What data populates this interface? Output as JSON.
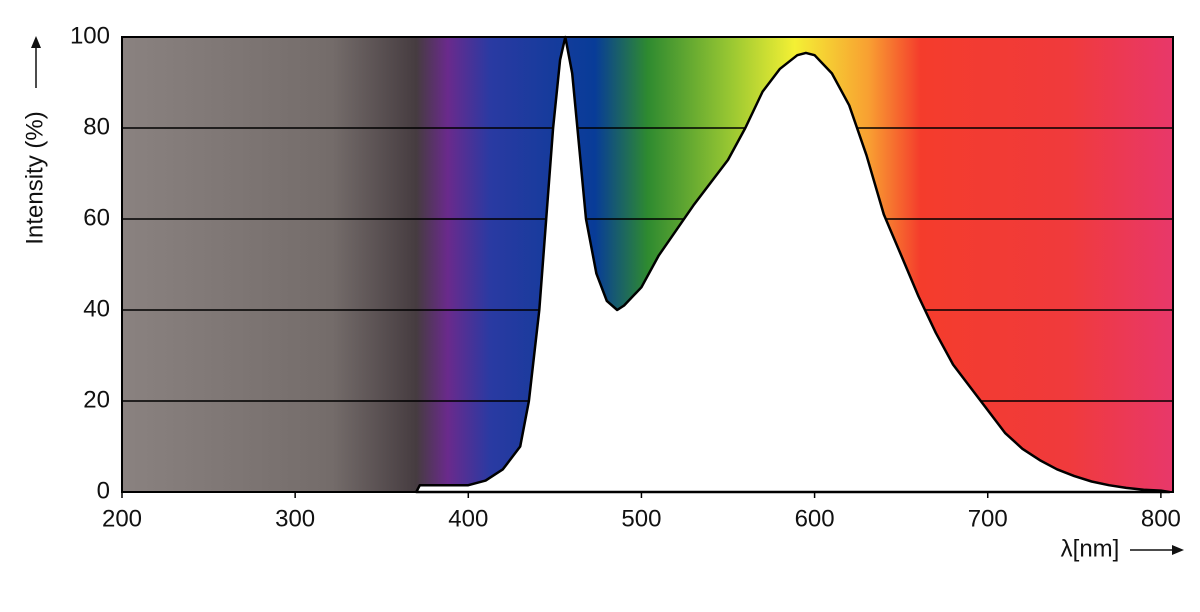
{
  "chart_data": {
    "type": "area",
    "x_label": "λ[nm]",
    "y_label": "Intensity (%)",
    "x": [
      370,
      372,
      400,
      410,
      420,
      430,
      435,
      441,
      445,
      449,
      453,
      456,
      460,
      463,
      468,
      474,
      480,
      486,
      490,
      500,
      510,
      520,
      530,
      540,
      550,
      560,
      570,
      580,
      590,
      595,
      600,
      610,
      620,
      630,
      640,
      650,
      660,
      670,
      680,
      690,
      700,
      710,
      720,
      730,
      740,
      750,
      760,
      770,
      780,
      790,
      800,
      805
    ],
    "values": [
      0,
      1.5,
      1.5,
      2.5,
      5,
      10,
      20,
      40,
      60,
      80,
      95,
      100,
      92,
      80,
      60,
      48,
      42,
      40,
      41,
      45,
      52,
      57.5,
      63,
      68,
      73,
      80,
      88,
      93,
      96,
      96.5,
      96,
      92,
      85,
      74,
      61,
      52,
      43,
      35,
      28,
      23,
      18,
      13,
      9.5,
      7,
      5,
      3.5,
      2.3,
      1.5,
      0.9,
      0.5,
      0.3,
      0
    ],
    "color": "#000000",
    "fill": "#ffffff",
    "xlim": [
      200,
      807
    ],
    "xticks": [
      200,
      300,
      400,
      500,
      600,
      700,
      800
    ],
    "ylim": [
      0,
      100
    ],
    "yticks": [
      0,
      20,
      40,
      60,
      80,
      100
    ],
    "grid": true
  }
}
